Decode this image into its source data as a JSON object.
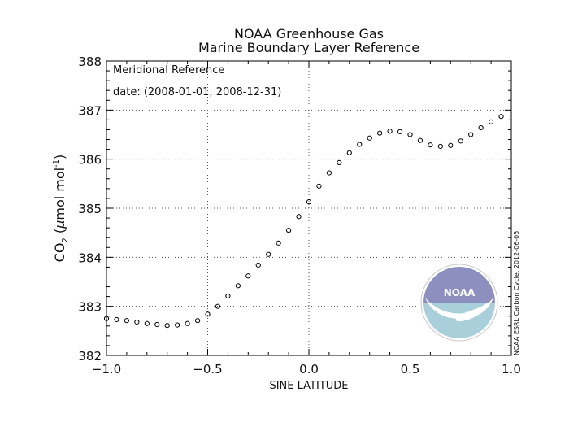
{
  "chart_data": {
    "type": "scatter",
    "title": "NOAA Greenhouse Gas",
    "subtitle": "Marine Boundary Layer Reference",
    "xlabel": "SINE LATITUDE",
    "ylabel_main": "CO",
    "ylabel_sub": "2",
    "ylabel_unit_prefix": "(",
    "ylabel_unit_mu": "μ",
    "ylabel_unit_text": "mol mol",
    "ylabel_unit_sup": "-1",
    "ylabel_unit_suffix": ")",
    "xlim": [
      -1.0,
      1.0
    ],
    "ylim": [
      382.0,
      388.0
    ],
    "x_ticks": [
      -1.0,
      -0.5,
      0.0,
      0.5,
      1.0
    ],
    "x_tick_labels": [
      "−1.0",
      "−0.5",
      "0.0",
      "0.5",
      "1.0"
    ],
    "y_ticks": [
      382,
      383,
      384,
      385,
      386,
      387,
      388
    ],
    "y_tick_labels": [
      "382",
      "383",
      "384",
      "385",
      "386",
      "387",
      "388"
    ],
    "grid": true,
    "annotations": [
      "Meridional Reference",
      "date: (2008-01-01, 2008-12-31)"
    ],
    "credit": "NOAA ESRL Carbon Cycle, 2012-06-05",
    "logo_text": "NOAA",
    "marker_color": "#000000",
    "grid_color": "#555555",
    "logo_colors": {
      "dark": "#8d8fbf",
      "light": "#a9cfdb"
    },
    "x": [
      -1.0,
      -0.95,
      -0.9,
      -0.85,
      -0.8,
      -0.75,
      -0.7,
      -0.65,
      -0.6,
      -0.55,
      -0.5,
      -0.45,
      -0.4,
      -0.35,
      -0.3,
      -0.25,
      -0.2,
      -0.15,
      -0.1,
      -0.05,
      0.0,
      0.05,
      0.1,
      0.15,
      0.2,
      0.25,
      0.3,
      0.35,
      0.4,
      0.45,
      0.5,
      0.55,
      0.6,
      0.65,
      0.7,
      0.75,
      0.8,
      0.85,
      0.9,
      0.95
    ],
    "y": [
      382.75,
      382.73,
      382.71,
      382.68,
      382.65,
      382.63,
      382.61,
      382.62,
      382.65,
      382.71,
      382.84,
      383.0,
      383.21,
      383.42,
      383.62,
      383.84,
      384.06,
      384.29,
      384.55,
      384.83,
      385.13,
      385.45,
      385.72,
      385.93,
      386.13,
      386.3,
      386.43,
      386.53,
      386.57,
      386.56,
      386.5,
      386.38,
      386.29,
      386.26,
      386.28,
      386.37,
      386.5,
      386.64,
      386.76,
      386.87
    ]
  }
}
